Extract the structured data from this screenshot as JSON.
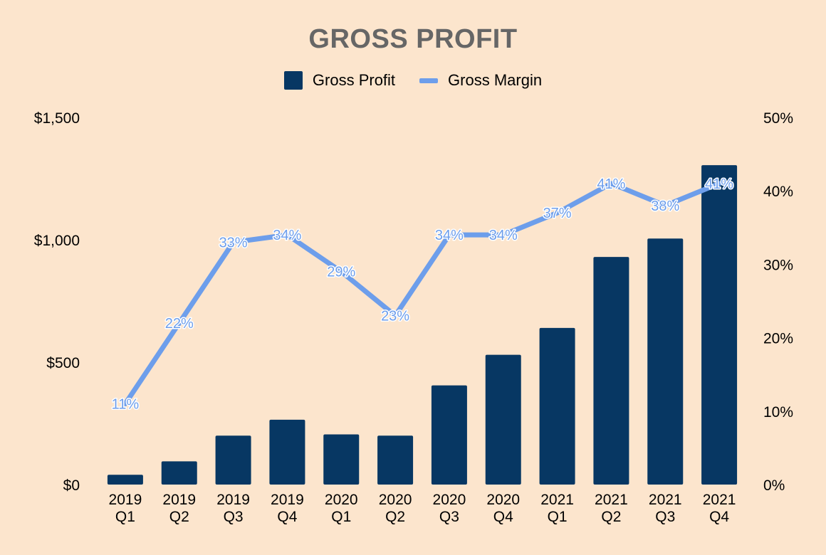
{
  "chart_data": {
    "type": "bar",
    "title": "GROSS PROFIT",
    "categories": [
      "2019 Q1",
      "2019 Q2",
      "2019 Q3",
      "2019 Q4",
      "2020 Q1",
      "2020 Q2",
      "2020 Q3",
      "2020 Q4",
      "2021 Q1",
      "2021 Q2",
      "2021 Q3",
      "2021 Q4"
    ],
    "series": [
      {
        "name": "Gross Profit",
        "type": "bar",
        "axis": "left",
        "color": "#073763",
        "values": [
          40,
          95,
          200,
          265,
          205,
          200,
          405,
          530,
          640,
          930,
          1005,
          1305
        ]
      },
      {
        "name": "Gross Margin",
        "type": "line",
        "axis": "right",
        "color": "#6d9eeb",
        "values": [
          11,
          22,
          33,
          34,
          29,
          23,
          34,
          34,
          37,
          41,
          38,
          41
        ],
        "data_labels": [
          "11%",
          "22%",
          "33%",
          "34%",
          "29%",
          "23%",
          "34%",
          "34%",
          "37%",
          "41%",
          "38%",
          "41%"
        ]
      }
    ],
    "y_left": {
      "lim": [
        0,
        1500
      ],
      "ticks": [
        0,
        500,
        1000,
        1500
      ],
      "tick_labels": [
        "$0",
        "$500",
        "$1,000",
        "$1,500"
      ]
    },
    "y_right": {
      "lim": [
        0,
        50
      ],
      "ticks": [
        0,
        10,
        20,
        30,
        40,
        50
      ],
      "tick_labels": [
        "0%",
        "10%",
        "20%",
        "30%",
        "40%",
        "50%"
      ]
    },
    "legend_position": "top-center",
    "grid": false
  }
}
